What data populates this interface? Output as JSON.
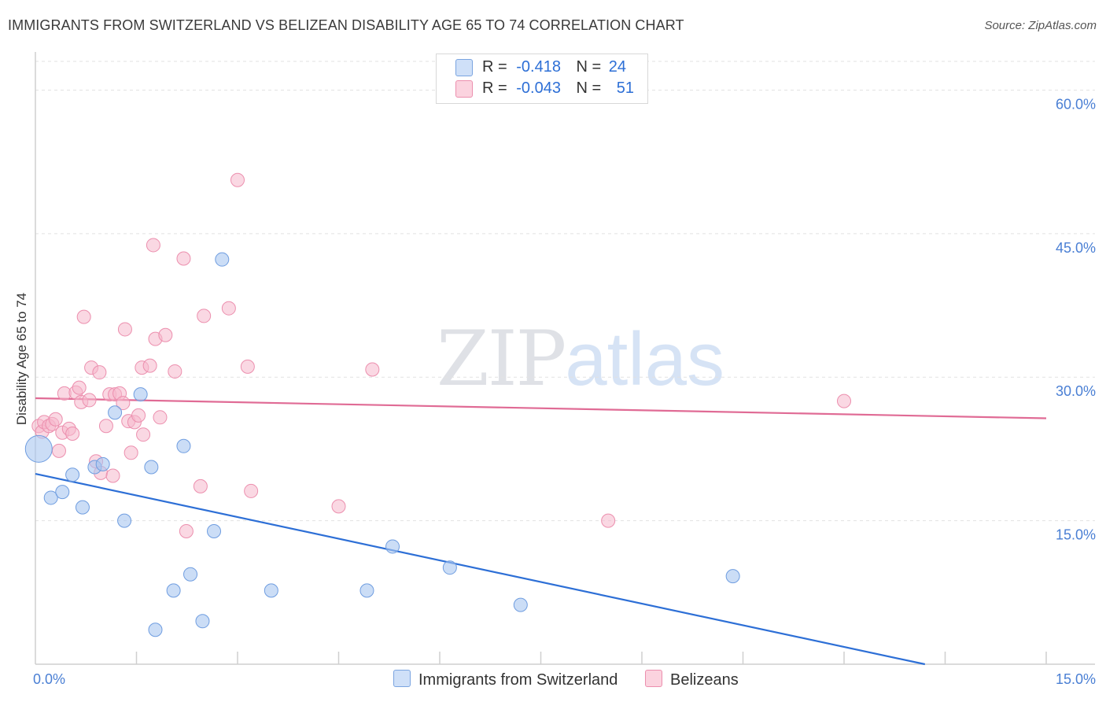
{
  "title": "IMMIGRANTS FROM SWITZERLAND VS BELIZEAN DISABILITY AGE 65 TO 74 CORRELATION CHART",
  "source": "Source: ZipAtlas.com",
  "watermark": {
    "zip": "ZIP",
    "atlas": "atlas"
  },
  "legend": {
    "rows": [
      {
        "r_label": "R =",
        "r_value": "-0.418",
        "n_label": "N =",
        "n_value": "24",
        "color": "#a8c6f0"
      },
      {
        "r_label": "R =",
        "r_value": "-0.043",
        "n_label": "N =",
        "n_value": "51",
        "color": "#f5b8cc"
      }
    ]
  },
  "bottom_legend": {
    "series1": "Immigrants from Switzerland",
    "series2": "Belizeans"
  },
  "colors": {
    "blue_fill": "#a8c6f0",
    "blue_stroke": "#6f9de0",
    "blue_line": "#2d6fd6",
    "pink_fill": "#f5b8cc",
    "pink_stroke": "#ec8fae",
    "pink_line": "#e06b95",
    "grid": "#e2e2e2",
    "tick": "#4a7fd4"
  },
  "chart_data": {
    "type": "scatter",
    "title": "IMMIGRANTS FROM SWITZERLAND VS BELIZEAN DISABILITY AGE 65 TO 74 CORRELATION CHART",
    "xlabel": "",
    "ylabel": "Disability Age 65 to 74",
    "xlim": [
      0,
      15
    ],
    "ylim": [
      0,
      63
    ],
    "x_ticks": [
      0,
      15
    ],
    "x_tick_labels": [
      "0.0%",
      "15.0%"
    ],
    "y_ticks": [
      15,
      30,
      45,
      60
    ],
    "y_tick_labels": [
      "15.0%",
      "30.0%",
      "45.0%",
      "60.0%"
    ],
    "series": [
      {
        "name": "Immigrants from Switzerland",
        "color": "#a8c6f0",
        "points": [
          {
            "x": 0.05,
            "y": 22.5,
            "size": "large"
          },
          {
            "x": 0.23,
            "y": 17.4
          },
          {
            "x": 0.4,
            "y": 18.0
          },
          {
            "x": 0.55,
            "y": 19.8
          },
          {
            "x": 0.7,
            "y": 16.4
          },
          {
            "x": 0.88,
            "y": 20.6
          },
          {
            "x": 1.0,
            "y": 20.9
          },
          {
            "x": 1.18,
            "y": 26.3
          },
          {
            "x": 1.32,
            "y": 15.0
          },
          {
            "x": 1.56,
            "y": 28.2
          },
          {
            "x": 1.72,
            "y": 20.6
          },
          {
            "x": 1.78,
            "y": 3.6
          },
          {
            "x": 2.05,
            "y": 7.7
          },
          {
            "x": 2.2,
            "y": 22.8
          },
          {
            "x": 2.3,
            "y": 9.4
          },
          {
            "x": 2.48,
            "y": 4.5
          },
          {
            "x": 2.65,
            "y": 13.9
          },
          {
            "x": 2.77,
            "y": 42.3
          },
          {
            "x": 3.5,
            "y": 7.7
          },
          {
            "x": 4.92,
            "y": 7.7
          },
          {
            "x": 5.3,
            "y": 12.3
          },
          {
            "x": 6.15,
            "y": 10.1
          },
          {
            "x": 7.2,
            "y": 6.2
          },
          {
            "x": 10.35,
            "y": 9.2
          }
        ],
        "trend": {
          "x0": 0,
          "y0": 19.9,
          "x1": 13.2,
          "y1": 0
        }
      },
      {
        "name": "Belizeans",
        "color": "#f5b8cc",
        "points": [
          {
            "x": 0.05,
            "y": 24.9
          },
          {
            "x": 0.1,
            "y": 24.3
          },
          {
            "x": 0.13,
            "y": 25.3
          },
          {
            "x": 0.2,
            "y": 24.9
          },
          {
            "x": 0.25,
            "y": 25.1
          },
          {
            "x": 0.3,
            "y": 25.6
          },
          {
            "x": 0.35,
            "y": 22.3
          },
          {
            "x": 0.4,
            "y": 24.2
          },
          {
            "x": 0.43,
            "y": 28.3
          },
          {
            "x": 0.5,
            "y": 24.6
          },
          {
            "x": 0.55,
            "y": 24.1
          },
          {
            "x": 0.6,
            "y": 28.4
          },
          {
            "x": 0.65,
            "y": 28.9
          },
          {
            "x": 0.68,
            "y": 27.4
          },
          {
            "x": 0.72,
            "y": 36.3
          },
          {
            "x": 0.8,
            "y": 27.6
          },
          {
            "x": 0.83,
            "y": 31.0
          },
          {
            "x": 0.9,
            "y": 21.2
          },
          {
            "x": 0.95,
            "y": 30.5
          },
          {
            "x": 0.97,
            "y": 20.0
          },
          {
            "x": 1.05,
            "y": 24.9
          },
          {
            "x": 1.1,
            "y": 28.2
          },
          {
            "x": 1.15,
            "y": 19.7
          },
          {
            "x": 1.18,
            "y": 28.2
          },
          {
            "x": 1.25,
            "y": 28.3
          },
          {
            "x": 1.3,
            "y": 27.3
          },
          {
            "x": 1.33,
            "y": 35.0
          },
          {
            "x": 1.38,
            "y": 25.4
          },
          {
            "x": 1.42,
            "y": 22.1
          },
          {
            "x": 1.47,
            "y": 25.3
          },
          {
            "x": 1.53,
            "y": 26.0
          },
          {
            "x": 1.58,
            "y": 31.0
          },
          {
            "x": 1.6,
            "y": 24.0
          },
          {
            "x": 1.7,
            "y": 31.2
          },
          {
            "x": 1.75,
            "y": 43.8
          },
          {
            "x": 1.78,
            "y": 34.0
          },
          {
            "x": 1.85,
            "y": 25.8
          },
          {
            "x": 1.93,
            "y": 34.4
          },
          {
            "x": 2.07,
            "y": 30.6
          },
          {
            "x": 2.2,
            "y": 42.4
          },
          {
            "x": 2.24,
            "y": 13.9
          },
          {
            "x": 2.45,
            "y": 18.6
          },
          {
            "x": 2.5,
            "y": 36.4
          },
          {
            "x": 2.87,
            "y": 37.2
          },
          {
            "x": 3.0,
            "y": 50.6
          },
          {
            "x": 3.15,
            "y": 31.1
          },
          {
            "x": 3.2,
            "y": 18.1
          },
          {
            "x": 4.5,
            "y": 16.5
          },
          {
            "x": 5.0,
            "y": 30.8
          },
          {
            "x": 8.5,
            "y": 15.0
          },
          {
            "x": 12.0,
            "y": 27.5
          }
        ],
        "trend": {
          "x0": 0,
          "y0": 27.8,
          "x1": 15,
          "y1": 25.7
        }
      }
    ]
  }
}
